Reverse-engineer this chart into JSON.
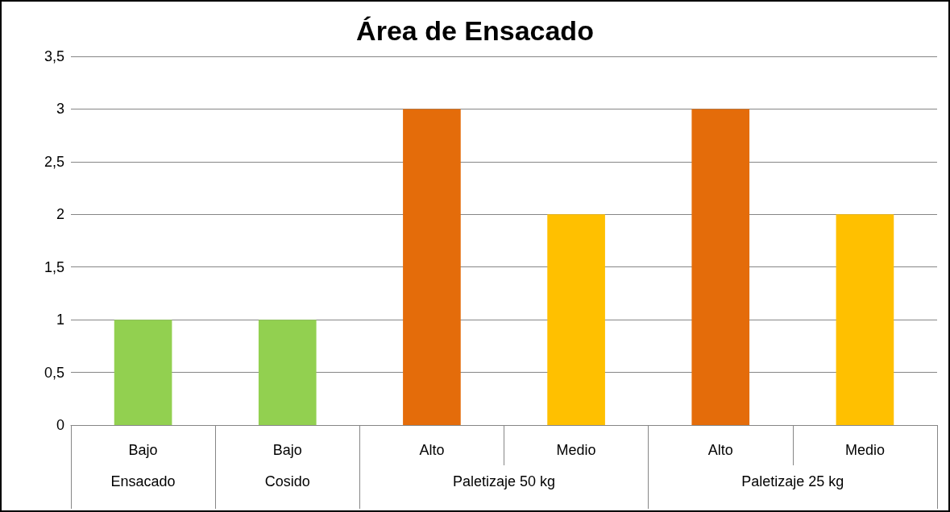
{
  "chart_data": {
    "type": "bar",
    "title": "Área de Ensacado",
    "categories": [
      "Bajo",
      "Bajo",
      "Alto",
      "Medio",
      "Alto",
      "Medio"
    ],
    "values": [
      1,
      1,
      3,
      2,
      3,
      2
    ],
    "colors": [
      "#92d050",
      "#92d050",
      "#e46c0a",
      "#ffc000",
      "#e46c0a",
      "#ffc000"
    ],
    "ylim": [
      0,
      3.5
    ],
    "yticks": [
      0,
      {
        "value": 0.5,
        "label": "0,5"
      },
      1,
      {
        "value": 1.5,
        "label": "1,5"
      },
      2,
      {
        "value": 2.5,
        "label": "2,5"
      },
      3,
      {
        "value": 3.5,
        "label": "3,5"
      }
    ],
    "grid": "y",
    "annotations": [
      "Ensacado",
      "Cosido",
      "Paletizaje 50 kg",
      "Paletizaje 25 kg"
    ]
  }
}
